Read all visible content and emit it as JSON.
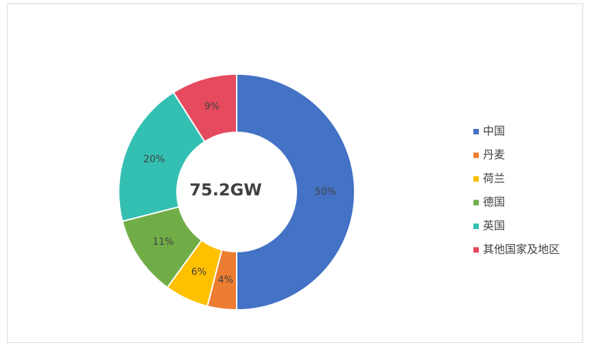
{
  "chart_data": {
    "type": "donut",
    "annotation": "75.2GW",
    "categories": [
      "中国",
      "丹麦",
      "荷兰",
      "德国",
      "英国",
      "其他国家及地区"
    ],
    "values": [
      50,
      4,
      6,
      11,
      20,
      9
    ],
    "value_labels": [
      "50%",
      "4%",
      "6%",
      "11%",
      "20%",
      "9%"
    ],
    "colors": [
      "#4472c4",
      "#ed7d31",
      "#ffc000",
      "#70ad47",
      "#33bfb2",
      "#e64a5e"
    ],
    "legend": "right"
  }
}
